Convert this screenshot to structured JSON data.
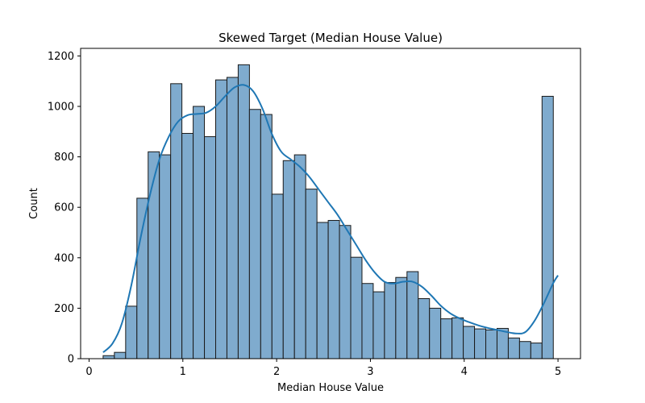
{
  "chart_data": {
    "type": "bar",
    "subtype": "histogram",
    "title": "Skewed Target (Median House Value)",
    "xlabel": "Median House Value",
    "ylabel": "Count",
    "xlim": [
      -0.09,
      5.24
    ],
    "ylim": [
      0,
      1230
    ],
    "xticks": [
      "0",
      "1",
      "2",
      "3",
      "4",
      "5"
    ],
    "yticks": [
      "0",
      "200",
      "400",
      "600",
      "800",
      "1000",
      "1200"
    ],
    "grid": false,
    "bin_width": 0.12,
    "bin_start": 0.15,
    "counts": [
      12,
      25,
      208,
      636,
      820,
      808,
      1090,
      893,
      1000,
      880,
      1105,
      1115,
      1165,
      988,
      968,
      652,
      785,
      808,
      672,
      540,
      548,
      528,
      402,
      298,
      265,
      302,
      322,
      345,
      238,
      200,
      158,
      162,
      128,
      118,
      114,
      120,
      82,
      68,
      62,
      1040
    ],
    "kde": {
      "x": [
        0.15,
        0.25,
        0.35,
        0.45,
        0.55,
        0.65,
        0.75,
        0.85,
        0.95,
        1.05,
        1.15,
        1.25,
        1.35,
        1.45,
        1.55,
        1.65,
        1.75,
        1.85,
        1.95,
        2.05,
        2.15,
        2.25,
        2.35,
        2.45,
        2.55,
        2.65,
        2.75,
        2.85,
        2.95,
        3.05,
        3.15,
        3.25,
        3.35,
        3.45,
        3.55,
        3.65,
        3.75,
        3.85,
        3.95,
        4.05,
        4.15,
        4.25,
        4.35,
        4.45,
        4.55,
        4.65,
        4.75,
        4.85,
        4.95,
        5.0
      ],
      "y": [
        25,
        60,
        140,
        290,
        480,
        650,
        790,
        880,
        940,
        965,
        970,
        975,
        1000,
        1040,
        1075,
        1085,
        1060,
        990,
        890,
        820,
        790,
        760,
        720,
        670,
        620,
        570,
        510,
        450,
        390,
        340,
        305,
        298,
        305,
        305,
        285,
        250,
        210,
        180,
        160,
        145,
        132,
        122,
        114,
        106,
        100,
        105,
        150,
        220,
        300,
        330
      ]
    },
    "colors": {
      "bar_fill": "#7fabce",
      "bar_edge": "#1a1a1a",
      "kde_line": "#1f77b4"
    }
  }
}
